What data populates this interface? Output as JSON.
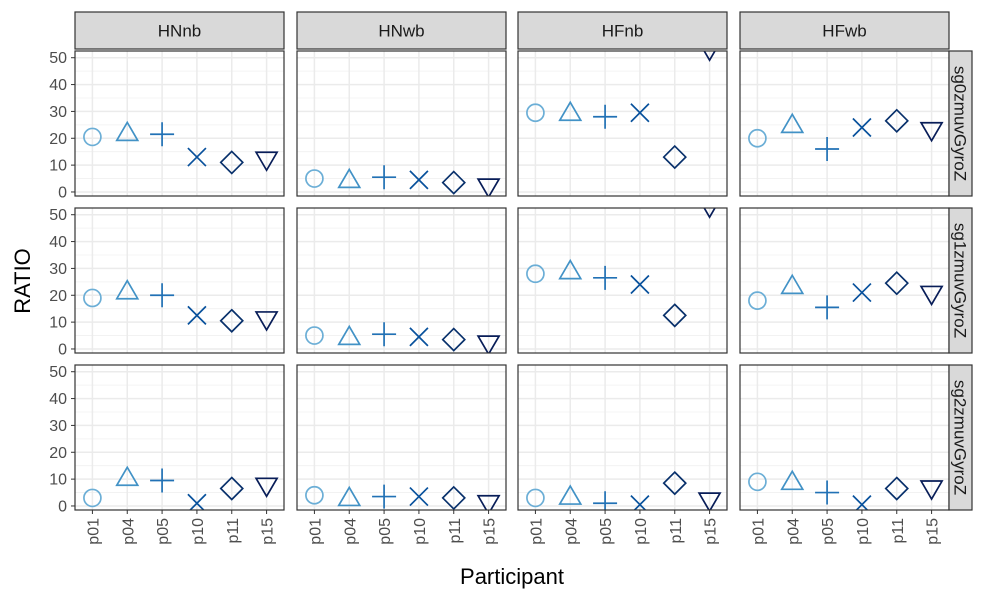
{
  "chart_data": {
    "type": "scatter",
    "xlabel": "Participant",
    "ylabel": "RATIO",
    "categories": [
      "p01",
      "p04",
      "p05",
      "p10",
      "p11",
      "p15"
    ],
    "ylim": [
      -1.5,
      52.5
    ],
    "yticks": [
      0,
      10,
      20,
      30,
      40,
      50
    ],
    "grid": true,
    "legend": "none",
    "column_facets": [
      "HNnb",
      "HNwb",
      "HFnb",
      "HFwb"
    ],
    "row_facets": [
      "sg0zmuvGyroZ",
      "sg1zmuvGyroZ",
      "sg2zmuvGyroZ"
    ],
    "colors": [
      "#6baed6",
      "#4292c6",
      "#2171b5",
      "#08519c",
      "#08306b",
      "#081d58"
    ],
    "shapes": [
      "circle",
      "triangle-up",
      "plus",
      "cross",
      "diamond",
      "triangle-down"
    ],
    "panels": [
      {
        "row": "sg0zmuvGyroZ",
        "col": "HNnb",
        "values": [
          20.5,
          22,
          21.5,
          13,
          11,
          12
        ]
      },
      {
        "row": "sg0zmuvGyroZ",
        "col": "HNwb",
        "values": [
          5,
          4.5,
          5.5,
          4.5,
          3.5,
          2
        ]
      },
      {
        "row": "sg0zmuvGyroZ",
        "col": "HFnb",
        "values": [
          29.5,
          29.5,
          28,
          29.5,
          13,
          53
        ]
      },
      {
        "row": "sg0zmuvGyroZ",
        "col": "HFwb",
        "values": [
          20,
          25,
          16,
          24,
          26.5,
          23
        ]
      },
      {
        "row": "sg1zmuvGyroZ",
        "col": "HNnb",
        "values": [
          19,
          21.5,
          20,
          12.5,
          10.5,
          11
        ]
      },
      {
        "row": "sg1zmuvGyroZ",
        "col": "HNwb",
        "values": [
          5,
          4.5,
          5.5,
          4.5,
          3.5,
          2
        ]
      },
      {
        "row": "sg1zmuvGyroZ",
        "col": "HFnb",
        "values": [
          28,
          29,
          26.5,
          24,
          12.5,
          53
        ]
      },
      {
        "row": "sg1zmuvGyroZ",
        "col": "HFwb",
        "values": [
          18,
          23.5,
          15.5,
          21,
          24.5,
          20.5
        ]
      },
      {
        "row": "sg2zmuvGyroZ",
        "col": "HNnb",
        "values": [
          3,
          10.5,
          9.5,
          1,
          6.5,
          7.5
        ]
      },
      {
        "row": "sg2zmuvGyroZ",
        "col": "HNwb",
        "values": [
          4,
          3,
          3.5,
          3.5,
          3,
          1
        ]
      },
      {
        "row": "sg2zmuvGyroZ",
        "col": "HFnb",
        "values": [
          3,
          3.5,
          1,
          0.5,
          8.5,
          2
        ]
      },
      {
        "row": "sg2zmuvGyroZ",
        "col": "HFwb",
        "values": [
          9,
          9,
          5,
          0.5,
          6.5,
          6.5
        ]
      }
    ]
  }
}
